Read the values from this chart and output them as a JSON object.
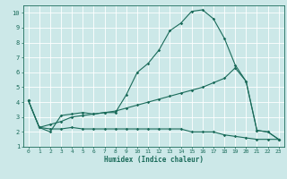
{
  "xlabel": "Humidex (Indice chaleur)",
  "bg_color": "#cce8e8",
  "line_color": "#1a6b5a",
  "grid_color": "#ffffff",
  "xlim": [
    -0.5,
    23.5
  ],
  "ylim": [
    1,
    10.5
  ],
  "xticks": [
    0,
    1,
    2,
    3,
    4,
    5,
    6,
    7,
    8,
    9,
    10,
    11,
    12,
    13,
    14,
    15,
    16,
    17,
    18,
    19,
    20,
    21,
    22,
    23
  ],
  "yticks": [
    1,
    2,
    3,
    4,
    5,
    6,
    7,
    8,
    9,
    10
  ],
  "line1_x": [
    0,
    1,
    2,
    3,
    4,
    5,
    6,
    7,
    8,
    9,
    10,
    11,
    12,
    13,
    14,
    15,
    16,
    17,
    18,
    19,
    20,
    21,
    22,
    23
  ],
  "line1_y": [
    4.1,
    2.3,
    2.0,
    3.1,
    3.2,
    3.3,
    3.2,
    3.3,
    3.3,
    4.5,
    6.0,
    6.6,
    7.5,
    8.8,
    9.3,
    10.1,
    10.2,
    9.6,
    8.3,
    6.5,
    5.4,
    2.1,
    2.0,
    1.5
  ],
  "line2_x": [
    0,
    1,
    2,
    3,
    4,
    5,
    6,
    7,
    8,
    9,
    10,
    11,
    12,
    13,
    14,
    15,
    16,
    17,
    18,
    19,
    20,
    21,
    22,
    23
  ],
  "line2_y": [
    4.1,
    2.3,
    2.5,
    2.7,
    3.0,
    3.1,
    3.2,
    3.3,
    3.4,
    3.6,
    3.8,
    4.0,
    4.2,
    4.4,
    4.6,
    4.8,
    5.0,
    5.3,
    5.6,
    6.3,
    5.4,
    2.1,
    2.0,
    1.5
  ],
  "line3_x": [
    0,
    1,
    2,
    3,
    4,
    5,
    6,
    7,
    8,
    9,
    10,
    11,
    12,
    13,
    14,
    15,
    16,
    17,
    18,
    19,
    20,
    21,
    22,
    23
  ],
  "line3_y": [
    4.1,
    2.3,
    2.2,
    2.2,
    2.3,
    2.2,
    2.2,
    2.2,
    2.2,
    2.2,
    2.2,
    2.2,
    2.2,
    2.2,
    2.2,
    2.0,
    2.0,
    2.0,
    1.8,
    1.7,
    1.6,
    1.5,
    1.5,
    1.5
  ]
}
